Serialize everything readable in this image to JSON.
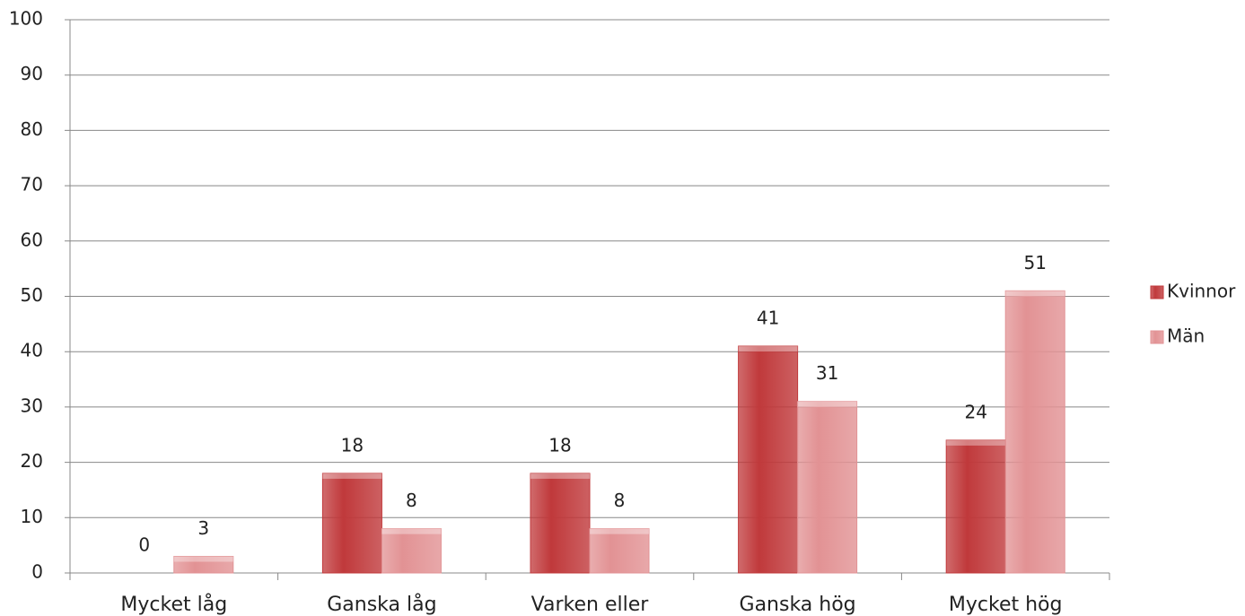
{
  "chart_data": {
    "type": "bar",
    "categories": [
      "Mycket låg",
      "Ganska låg",
      "Varken eller",
      "Ganska hög",
      "Mycket hög"
    ],
    "series": [
      {
        "name": "Kvinnor",
        "color": "#c0393b",
        "values": [
          0,
          18,
          18,
          41,
          24
        ]
      },
      {
        "name": "Män",
        "color": "#e29294",
        "values": [
          3,
          8,
          8,
          31,
          51
        ]
      }
    ],
    "ylim": [
      0,
      100
    ],
    "yticks": [
      0,
      10,
      20,
      30,
      40,
      50,
      60,
      70,
      80,
      90,
      100
    ],
    "grid": true,
    "legend": "right"
  }
}
